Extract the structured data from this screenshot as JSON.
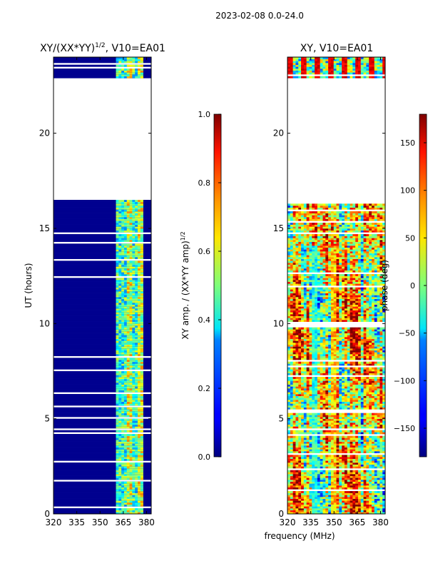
{
  "suptitle": "2023-02-08 0.0-24.0",
  "xlabel_common": "frequency (MHz)",
  "chart_data": [
    {
      "type": "heatmap",
      "id": "amp",
      "title_main": "XY/(XX*YY)",
      "title_sup": "1/2",
      "title_tail": ", V10=EA01",
      "ylabel": "UT (hours)",
      "xlim": [
        320,
        383
      ],
      "ylim": [
        0,
        24
      ],
      "x_ticks": [
        320,
        335,
        350,
        365,
        380
      ],
      "y_ticks": [
        0,
        5,
        10,
        15,
        20
      ],
      "data_present_ranges_hours": [
        [
          0,
          16.5
        ],
        [
          22.9,
          24
        ]
      ],
      "bright_band_mhz": [
        360,
        378
      ],
      "colorbar": {
        "label_main": "XY amp. / (XX*YY amp)",
        "label_sup": "1/2",
        "range": [
          0.0,
          1.0
        ],
        "ticks": [
          "0.0",
          "0.2",
          "0.4",
          "0.6",
          "0.8",
          "1.0"
        ],
        "colormap": "jet"
      }
    },
    {
      "type": "heatmap",
      "id": "phase",
      "title": "XY, V10=EA01",
      "xlabel": "frequency (MHz)",
      "xlim": [
        320,
        383
      ],
      "ylim": [
        0,
        24
      ],
      "x_ticks": [
        320,
        335,
        350,
        365,
        380
      ],
      "y_ticks": [
        0,
        5,
        10,
        15,
        20
      ],
      "data_present_ranges_hours": [
        [
          0,
          16.5
        ],
        [
          22.9,
          24
        ]
      ],
      "colorbar": {
        "label": "phase (deg)",
        "range": [
          -180,
          180
        ],
        "ticks": [
          "150",
          "100",
          "50",
          "0",
          "−50",
          "−100",
          "−150"
        ],
        "tick_values": [
          150,
          100,
          50,
          0,
          -50,
          -100,
          -150
        ],
        "colormap": "jet"
      }
    }
  ]
}
